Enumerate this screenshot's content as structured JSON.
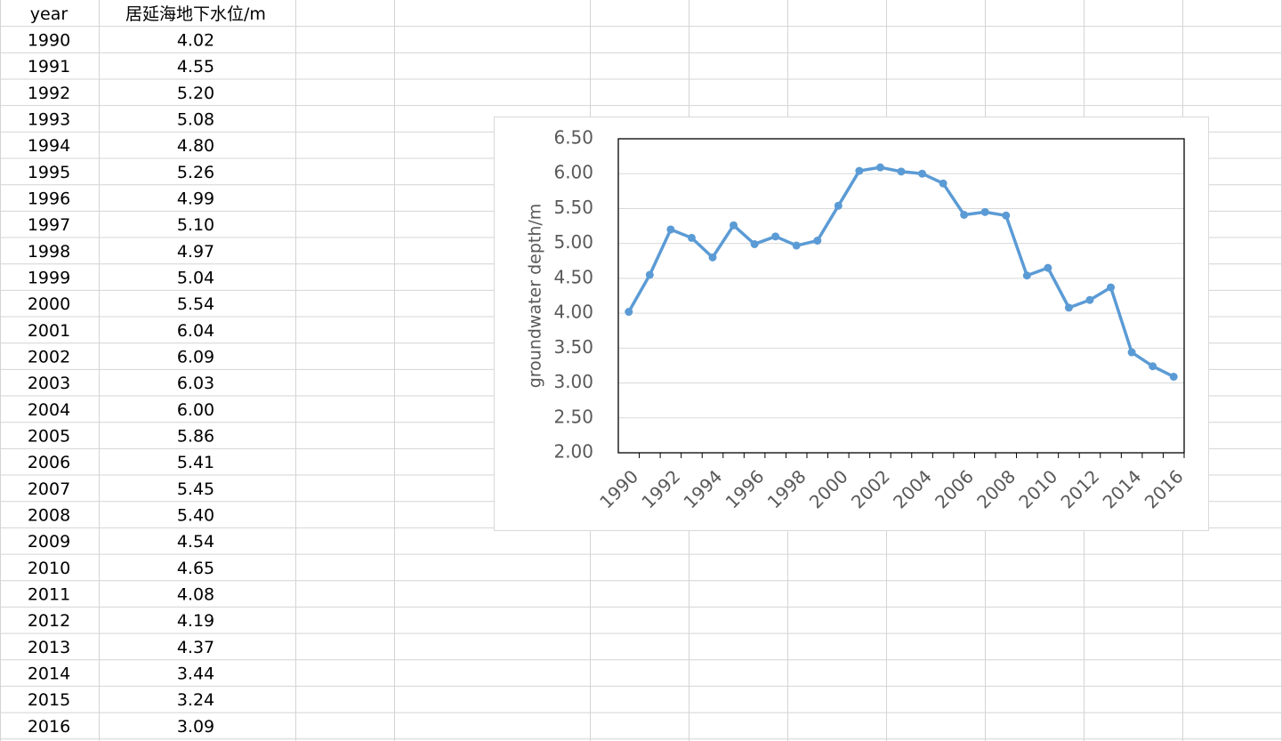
{
  "table": {
    "header": [
      "year",
      "居延海地下水位/m"
    ],
    "rows": [
      [
        "1990",
        "4.02"
      ],
      [
        "1991",
        "4.55"
      ],
      [
        "1992",
        "5.20"
      ],
      [
        "1993",
        "5.08"
      ],
      [
        "1994",
        "4.80"
      ],
      [
        "1995",
        "5.26"
      ],
      [
        "1996",
        "4.99"
      ],
      [
        "1997",
        "5.10"
      ],
      [
        "1998",
        "4.97"
      ],
      [
        "1999",
        "5.04"
      ],
      [
        "2000",
        "5.54"
      ],
      [
        "2001",
        "6.04"
      ],
      [
        "2002",
        "6.09"
      ],
      [
        "2003",
        "6.03"
      ],
      [
        "2004",
        "6.00"
      ],
      [
        "2005",
        "5.86"
      ],
      [
        "2006",
        "5.41"
      ],
      [
        "2007",
        "5.45"
      ],
      [
        "2008",
        "5.40"
      ],
      [
        "2009",
        "4.54"
      ],
      [
        "2010",
        "4.65"
      ],
      [
        "2011",
        "4.08"
      ],
      [
        "2012",
        "4.19"
      ],
      [
        "2013",
        "4.37"
      ],
      [
        "2014",
        "3.44"
      ],
      [
        "2015",
        "3.24"
      ],
      [
        "2016",
        "3.09"
      ]
    ]
  },
  "chart_data": {
    "type": "line",
    "y_label": "groundwater  depth/m",
    "categories": [
      "1990",
      null,
      "1992",
      null,
      "1994",
      null,
      "1996",
      null,
      "1998",
      null,
      "2000",
      null,
      "2002",
      null,
      "2004",
      null,
      "2006",
      null,
      "2008",
      null,
      "2010",
      null,
      "2012",
      null,
      "2014",
      null,
      "2016"
    ],
    "values": [
      4.02,
      4.55,
      5.2,
      5.08,
      4.8,
      5.26,
      4.99,
      5.1,
      4.97,
      5.04,
      5.54,
      6.04,
      6.09,
      6.03,
      6.0,
      5.86,
      5.41,
      5.45,
      5.4,
      4.54,
      4.65,
      4.08,
      4.19,
      4.37,
      3.44,
      3.24,
      3.09
    ],
    "color": "#5b9bd5",
    "ylim": [
      2,
      6.5
    ],
    "yticks": [
      {
        "value": 2,
        "label": "2.00"
      },
      {
        "value": 2.5,
        "label": "2.50"
      },
      {
        "value": 3,
        "label": "3.00"
      },
      {
        "value": 3.5,
        "label": "3.50"
      },
      {
        "value": 4,
        "label": "4.00"
      },
      {
        "value": 4.5,
        "label": "4.50"
      },
      {
        "value": 5,
        "label": "5.00"
      },
      {
        "value": 5.5,
        "label": "5.50"
      },
      {
        "value": 6,
        "label": "6.00"
      },
      {
        "value": 6.5,
        "label": "6.50"
      }
    ],
    "grid": true
  }
}
